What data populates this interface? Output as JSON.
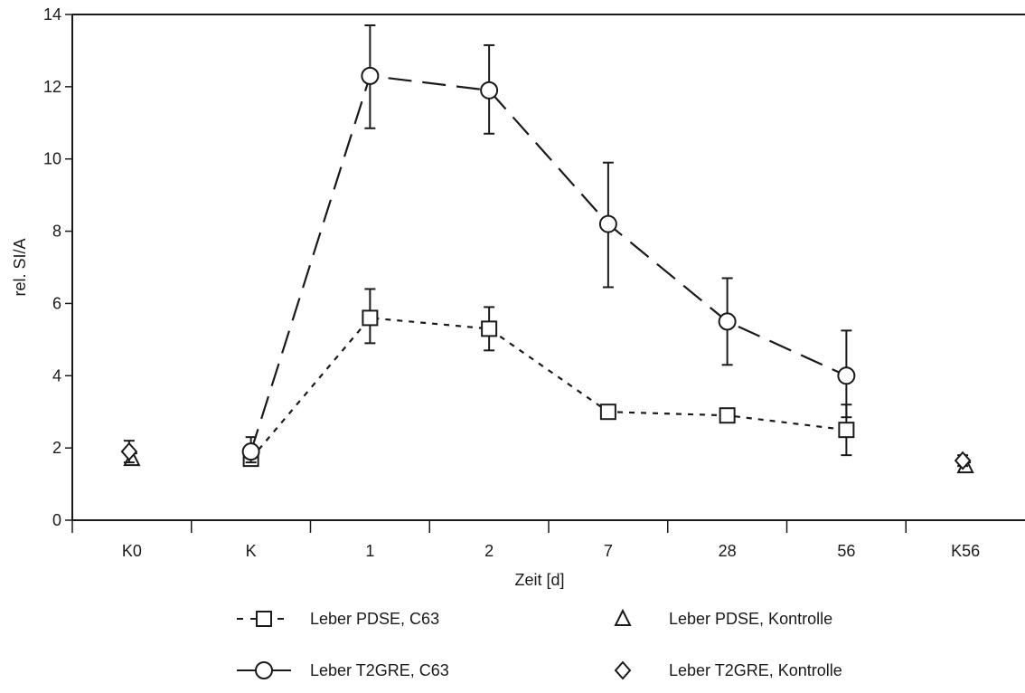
{
  "chart_data": {
    "type": "line",
    "title": "",
    "xlabel": "Zeit [d]",
    "ylabel": "rel. SI/A",
    "categories": [
      "K0",
      "K",
      "1",
      "2",
      "7",
      "28",
      "56",
      "K56"
    ],
    "ylim": [
      0,
      14
    ],
    "yticks": [
      0,
      2,
      4,
      6,
      8,
      10,
      12,
      14
    ],
    "grid": false,
    "legend_position": "bottom",
    "series": [
      {
        "name": "Leber PDSE, C63",
        "marker": "square",
        "line": "short-dash",
        "values": [
          null,
          1.7,
          5.6,
          5.3,
          3.0,
          2.9,
          2.5,
          null
        ],
        "err_low": [
          null,
          1.6,
          4.9,
          4.7,
          2.9,
          2.8,
          1.8,
          null
        ],
        "err_high": [
          null,
          1.8,
          6.4,
          5.9,
          3.15,
          3.0,
          3.2,
          null
        ]
      },
      {
        "name": "Leber T2GRE, C63",
        "marker": "circle",
        "line": "long-dash",
        "values": [
          null,
          1.9,
          12.3,
          11.9,
          8.2,
          5.5,
          4.0,
          null
        ],
        "err_low": [
          null,
          1.6,
          10.85,
          10.7,
          6.45,
          4.3,
          2.85,
          null
        ],
        "err_high": [
          null,
          2.3,
          13.7,
          13.15,
          9.9,
          6.7,
          5.25,
          null
        ]
      },
      {
        "name": "Leber PDSE, Kontrolle",
        "marker": "triangle",
        "line": "none",
        "values": [
          1.7,
          null,
          null,
          null,
          null,
          null,
          null,
          1.5
        ],
        "err_low": [
          1.6,
          null,
          null,
          null,
          null,
          null,
          null,
          1.4
        ],
        "err_high": [
          1.85,
          null,
          null,
          null,
          null,
          null,
          null,
          1.6
        ]
      },
      {
        "name": "Leber T2GRE, Kontrolle",
        "marker": "diamond",
        "line": "none",
        "values": [
          1.9,
          null,
          null,
          null,
          null,
          null,
          null,
          1.65
        ],
        "err_low": [
          1.6,
          null,
          null,
          null,
          null,
          null,
          null,
          1.5
        ],
        "err_high": [
          2.2,
          null,
          null,
          null,
          null,
          null,
          null,
          1.8
        ]
      }
    ]
  }
}
